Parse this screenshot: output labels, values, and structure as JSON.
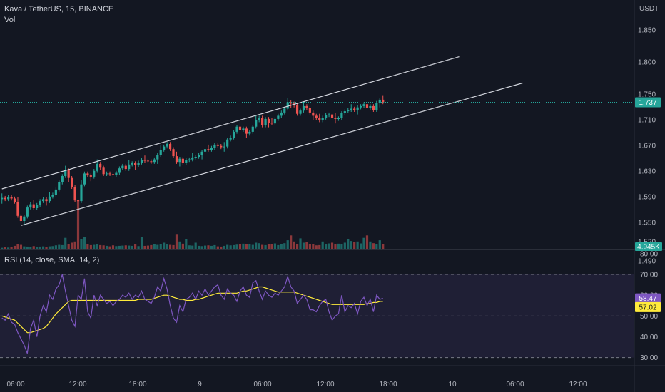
{
  "header": {
    "symbol_line": "Kava / TetherUS, 15, BINANCE",
    "volume_label": "Vol",
    "currency_label": "USDT"
  },
  "colors": {
    "background": "#131722",
    "up": "#26a69a",
    "down": "#ef5350",
    "rsi_line": "#7e57c2",
    "rsi_ma": "#ffeb3b",
    "channel": "#d1d4dc",
    "last_price_badge": "#26a69a",
    "rsi_badge": "#7e57c2",
    "rsi_ma_badge": "#ffeb3b"
  },
  "price_badge": "1.737",
  "volume_badge": "4.945K",
  "rsi": {
    "label": "RSI (14, close, SMA, 14, 2)",
    "value_badge": "58.47",
    "ma_badge": "57.02",
    "top_label": "80.00"
  },
  "chart_data": [
    {
      "type": "candlestick",
      "title": "Kava / TetherUS, 15, BINANCE",
      "xlabel": "",
      "ylabel": "USDT",
      "y_ticks": [
        "1.850",
        "1.800",
        "1.750",
        "1.710",
        "1.670",
        "1.630",
        "1.590",
        "1.550",
        "1.520",
        "1.490"
      ],
      "x_ticks": [
        "06:00",
        "12:00",
        "18:00",
        "9",
        "06:00",
        "12:00",
        "18:00",
        "10",
        "06:00",
        "12:00"
      ],
      "last_price": 1.737,
      "series": [
        {
          "name": "Kava / TetherUS",
          "close": [
            1.588,
            1.586,
            1.589,
            1.587,
            1.582,
            1.56,
            1.552,
            1.559,
            1.573,
            1.578,
            1.572,
            1.577,
            1.583,
            1.586,
            1.583,
            1.59,
            1.593,
            1.601,
            1.612,
            1.622,
            1.631,
            1.619,
            1.605,
            1.584,
            1.583,
            1.609,
            1.626,
            1.623,
            1.621,
            1.63,
            1.641,
            1.635,
            1.625,
            1.626,
            1.625,
            1.624,
            1.627,
            1.634,
            1.638,
            1.633,
            1.64,
            1.642,
            1.639,
            1.643,
            1.647,
            1.646,
            1.645,
            1.644,
            1.648,
            1.655,
            1.663,
            1.668,
            1.672,
            1.664,
            1.653,
            1.644,
            1.649,
            1.642,
            1.647,
            1.648,
            1.651,
            1.652,
            1.655,
            1.66,
            1.664,
            1.663,
            1.666,
            1.671,
            1.669,
            1.667,
            1.668,
            1.679,
            1.682,
            1.691,
            1.699,
            1.694,
            1.696,
            1.688,
            1.691,
            1.699,
            1.709,
            1.713,
            1.701,
            1.711,
            1.705,
            1.704,
            1.711,
            1.716,
            1.721,
            1.727,
            1.737,
            1.735,
            1.732,
            1.719,
            1.724,
            1.731,
            1.728,
            1.721,
            1.716,
            1.712,
            1.709,
            1.713,
            1.717,
            1.718,
            1.713,
            1.711,
            1.712,
            1.72,
            1.723,
            1.725,
            1.727,
            1.725,
            1.729,
            1.731,
            1.734,
            1.728,
            1.731,
            1.725,
            1.736,
            1.741,
            1.737
          ]
        }
      ],
      "channel_lines": [
        {
          "from": {
            "bar": 0,
            "price": 1.602
          },
          "to": {
            "bar": 144,
            "price": 1.808
          }
        },
        {
          "from": {
            "bar": 6,
            "price": 1.545
          },
          "to": {
            "bar": 164,
            "price": 1.767
          }
        }
      ]
    },
    {
      "type": "bar",
      "title": "Vol",
      "last_value": "4.945K",
      "series": [
        {
          "name": "Vol",
          "values": [
            0.4,
            0.6,
            0.5,
            0.8,
            1.2,
            2.0,
            1.6,
            1.0,
            0.9,
            0.8,
            1.1,
            0.7,
            0.9,
            1.0,
            0.8,
            1.0,
            1.1,
            1.4,
            1.6,
            1.5,
            4.5,
            2.0,
            2.5,
            3.0,
            20,
            4.0,
            5.0,
            2.0,
            1.5,
            1.6,
            2.0,
            1.5,
            1.4,
            1.2,
            1.0,
            1.4,
            1.1,
            1.2,
            1.3,
            1.4,
            1.3,
            1.2,
            2.0,
            1.1,
            5.0,
            1.2,
            1.3,
            1.5,
            2.0,
            1.6,
            1.8,
            2.5,
            2.0,
            1.6,
            1.5,
            5.8,
            3.0,
            2.1,
            4.0,
            1.4,
            1.3,
            2.5,
            1.2,
            1.1,
            1.3,
            1.4,
            1.2,
            1.5,
            1.0,
            0.9,
            1.2,
            1.6,
            1.4,
            1.5,
            1.7,
            2.0,
            2.1,
            1.9,
            1.8,
            1.6,
            2.5,
            2.3,
            1.6,
            1.5,
            1.8,
            2.0,
            2.2,
            1.5,
            1.9,
            2.3,
            3.5,
            5.5,
            3.0,
            2.0,
            4.3,
            2.5,
            2.8,
            2.0,
            1.9,
            1.4,
            1.5,
            3.0,
            2.0,
            2.2,
            2.5,
            2.0,
            2.1,
            1.9,
            2.5,
            4.0,
            3.2,
            2.8,
            3.0,
            2.2,
            4.5,
            5.5,
            3.0,
            2.3,
            2.0,
            3.5,
            2.0
          ]
        }
      ]
    },
    {
      "type": "line",
      "title": "RSI (14, close, SMA, 14, 2)",
      "y_ticks": [
        "70.00",
        "60.00",
        "50.00",
        "40.00",
        "30.00"
      ],
      "ylim": [
        30,
        80
      ],
      "band": [
        30,
        70
      ],
      "series": [
        {
          "name": "RSI",
          "values": [
            49,
            48,
            51,
            47,
            46,
            42,
            39,
            36,
            32,
            44,
            48,
            40,
            50,
            55,
            52,
            60,
            58,
            63,
            65,
            70,
            62,
            55,
            48,
            45,
            60,
            58,
            68,
            52,
            49,
            60,
            55,
            60,
            58,
            56,
            57,
            55,
            57,
            58,
            60,
            59,
            61,
            58,
            60,
            59,
            62,
            58,
            57,
            56,
            59,
            64,
            62,
            68,
            63,
            55,
            49,
            47,
            55,
            52,
            58,
            59,
            61,
            58,
            62,
            60,
            63,
            60,
            62,
            64,
            65,
            60,
            58,
            63,
            61,
            60,
            57,
            62,
            64,
            60,
            59,
            66,
            67,
            62,
            58,
            62,
            60,
            59,
            61,
            60,
            62,
            64,
            69,
            64,
            62,
            56,
            58,
            60,
            58,
            53,
            53,
            52,
            55,
            57,
            58,
            52,
            48,
            50,
            51,
            60,
            52,
            55,
            54,
            56,
            51,
            57,
            59,
            55,
            58,
            52,
            60,
            58,
            58.47
          ]
        },
        {
          "name": "RSI-based MA",
          "values": [
            50,
            49.5,
            49,
            48.5,
            48,
            46.5,
            45,
            43.5,
            42,
            42,
            42.5,
            43,
            43.5,
            44,
            45,
            47,
            49,
            51,
            52.5,
            54,
            55.5,
            57,
            57.5,
            57.5,
            57.5,
            57.5,
            57.5,
            57.5,
            57.5,
            57.5,
            57.5,
            57.5,
            57.5,
            57.5,
            57.5,
            57.5,
            57.5,
            57.5,
            57.5,
            57.5,
            57.5,
            57.5,
            57.5,
            58,
            58,
            58,
            58,
            58,
            58.5,
            59,
            59.5,
            60,
            60,
            59.5,
            59,
            58.5,
            58,
            58,
            57.5,
            57.5,
            57.5,
            58,
            58,
            58.5,
            59,
            59.5,
            60,
            60.5,
            61,
            61,
            61,
            61,
            61,
            61,
            61,
            61.5,
            62,
            62,
            62.5,
            63,
            63.5,
            64,
            64,
            63.5,
            63,
            62.5,
            62,
            61.5,
            61.5,
            61.5,
            61.5,
            61.5,
            61.5,
            61,
            60.5,
            60,
            59.5,
            59,
            58.5,
            58,
            57.5,
            57,
            56.5,
            56,
            55.5,
            55.5,
            55.5,
            55.5,
            55.5,
            55.5,
            55.5,
            55.5,
            55.5,
            55.5,
            55.5,
            56,
            56,
            56.5,
            56.5,
            57,
            57.02
          ]
        }
      ]
    }
  ]
}
